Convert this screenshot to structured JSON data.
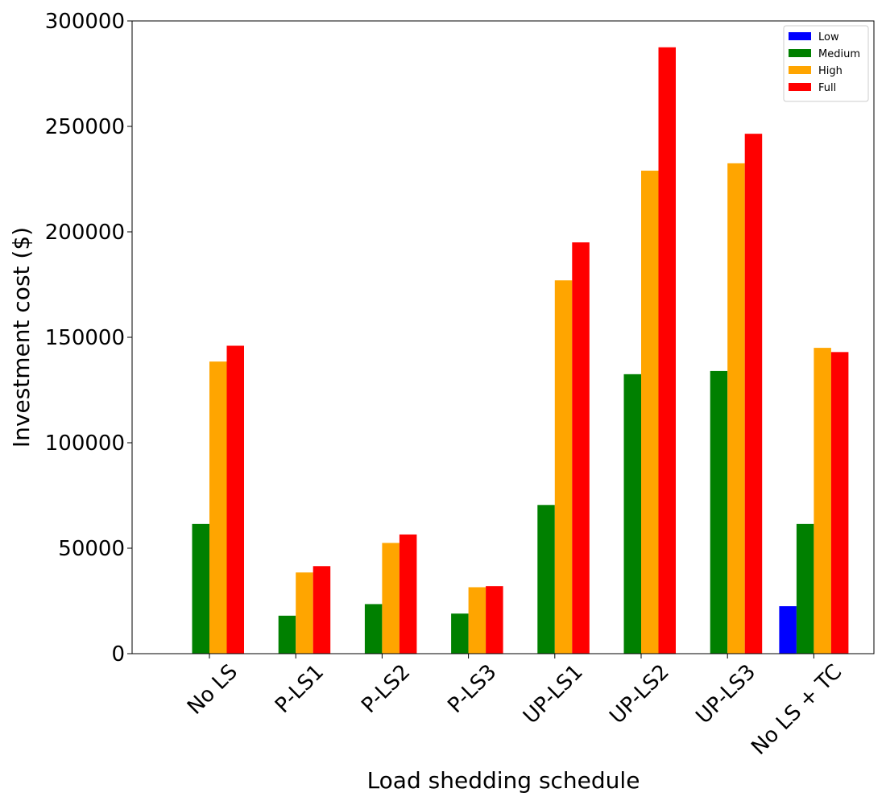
{
  "chart_data": {
    "type": "bar",
    "title": "",
    "xlabel": "Load shedding schedule",
    "ylabel": "Investment cost ($)",
    "ylim": [
      0,
      300000
    ],
    "yticks": [
      0,
      50000,
      100000,
      150000,
      200000,
      250000,
      300000
    ],
    "grid": false,
    "legend_position": "top-right",
    "categories": [
      "No LS",
      "P-LS1",
      "P-LS2",
      "P-LS3",
      "UP-LS1",
      "UP-LS2",
      "UP-LS3",
      "No LS + TC"
    ],
    "series": [
      {
        "name": "Low",
        "color": "#0000ff",
        "values": [
          0,
          0,
          0,
          0,
          0,
          0,
          0,
          22500
        ]
      },
      {
        "name": "Medium",
        "color": "#008000",
        "values": [
          61500,
          18000,
          23500,
          19000,
          70500,
          132500,
          134000,
          61500
        ]
      },
      {
        "name": "High",
        "color": "#ffa500",
        "values": [
          138500,
          38500,
          52500,
          31500,
          177000,
          229000,
          232500,
          145000
        ]
      },
      {
        "name": "Full",
        "color": "#ff0000",
        "values": [
          146000,
          41500,
          56500,
          32000,
          195000,
          287500,
          246500,
          143000
        ]
      }
    ]
  }
}
